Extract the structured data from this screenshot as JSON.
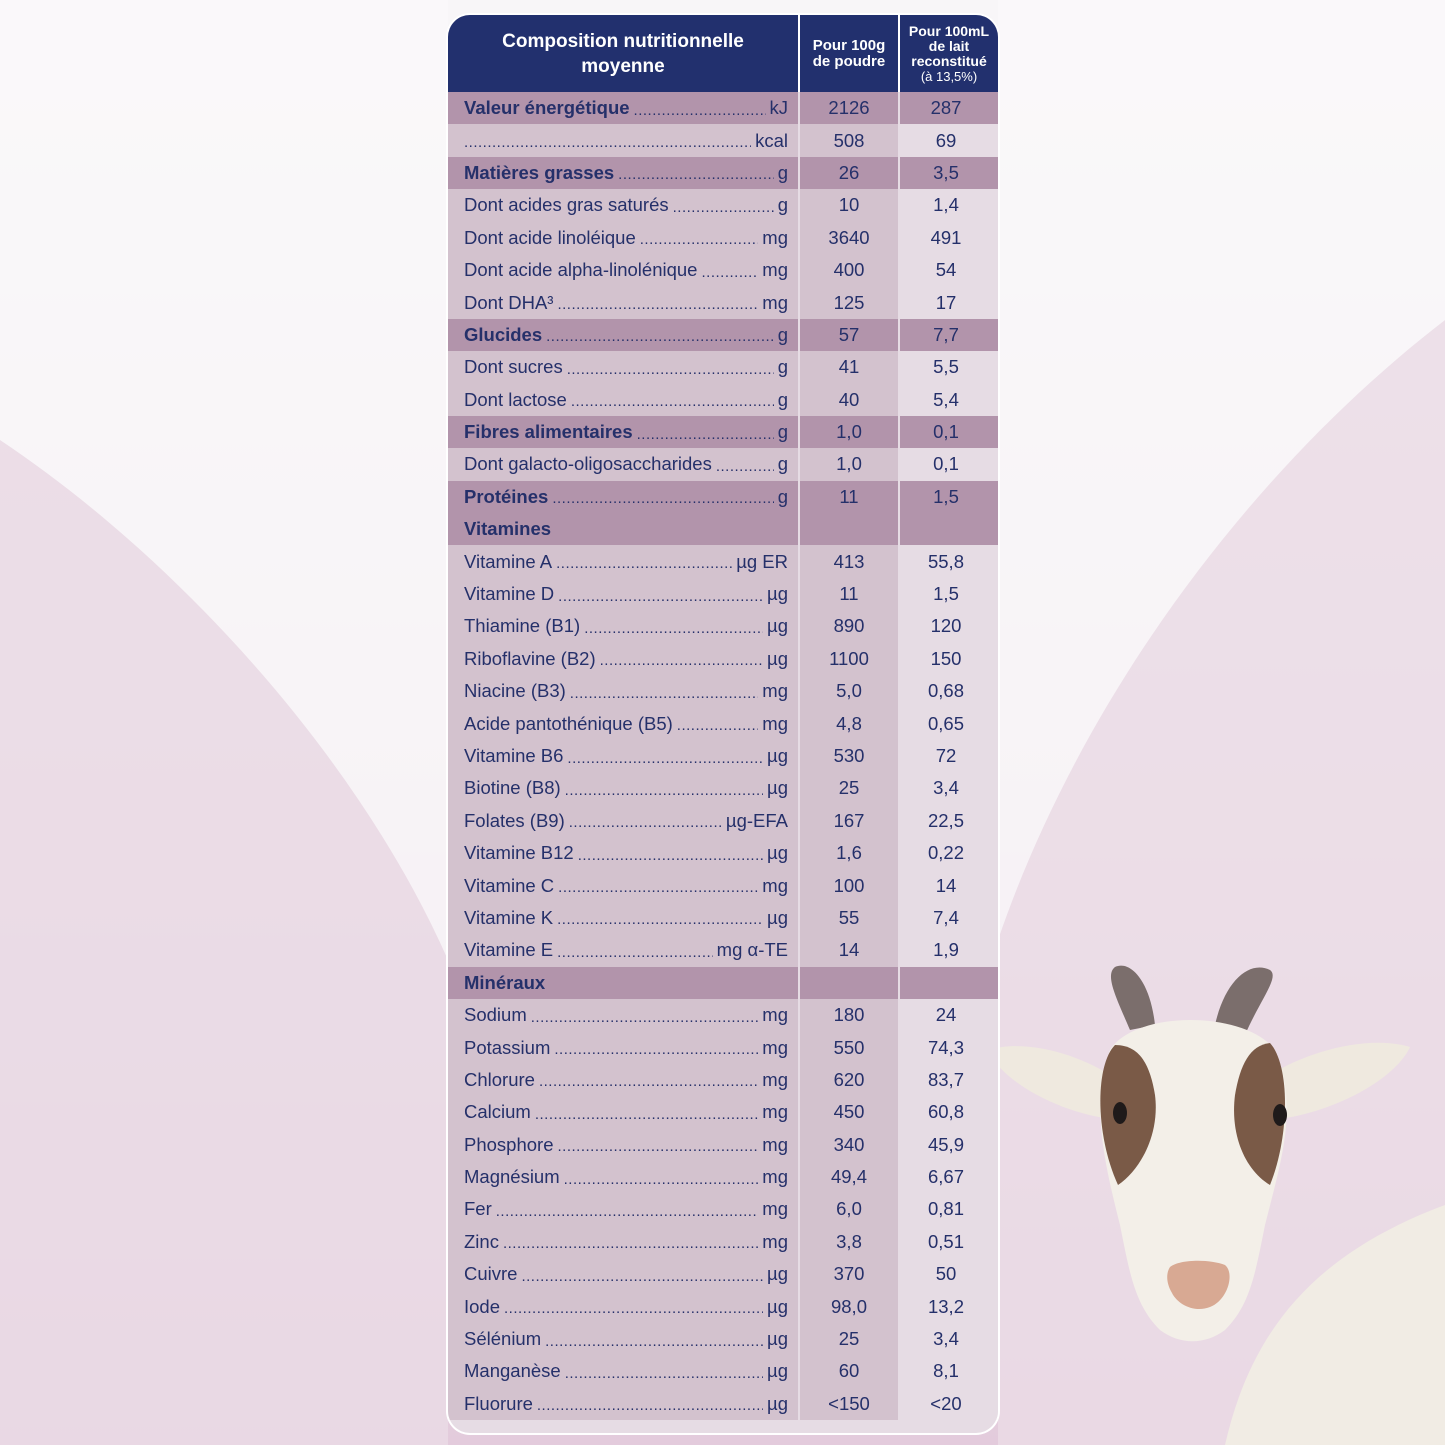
{
  "header": {
    "col_label": "Composition nutritionnelle moyenne",
    "col_label_line1": "Composition nutritionnelle",
    "col_label_line2": "moyenne",
    "col_100g_line1": "Pour 100g",
    "col_100g_line2": "de poudre",
    "col_100ml_line1": "Pour 100mL",
    "col_100ml_line2": "de lait",
    "col_100ml_line3": "reconstitué",
    "col_100ml_line4": "(à 13,5%)"
  },
  "rows": [
    {
      "label": "Valeur énergétique",
      "unit": "kJ",
      "v1": "2126",
      "v2": "287",
      "style": "hl"
    },
    {
      "label": "",
      "unit": "kcal",
      "v1": "508",
      "v2": "69",
      "style": "normal"
    },
    {
      "label": "Matières grasses",
      "unit": "g",
      "v1": "26",
      "v2": "3,5",
      "style": "hl"
    },
    {
      "label": "Dont acides gras saturés",
      "unit": "g",
      "v1": "10",
      "v2": "1,4",
      "style": "normal"
    },
    {
      "label": "Dont acide linoléique",
      "unit": "mg",
      "v1": "3640",
      "v2": "491",
      "style": "normal"
    },
    {
      "label": "Dont acide alpha-linolénique",
      "unit": "mg",
      "v1": "400",
      "v2": "54",
      "style": "normal"
    },
    {
      "label": "Dont DHA³",
      "unit": "mg",
      "v1": "125",
      "v2": "17",
      "style": "normal"
    },
    {
      "label": "Glucides",
      "unit": "g",
      "v1": "57",
      "v2": "7,7",
      "style": "hl"
    },
    {
      "label": "Dont sucres",
      "unit": "g",
      "v1": "41",
      "v2": "5,5",
      "style": "normal"
    },
    {
      "label": "Dont lactose",
      "unit": "g",
      "v1": "40",
      "v2": "5,4",
      "style": "normal"
    },
    {
      "label": "Fibres alimentaires",
      "unit": "g",
      "v1": "1,0",
      "v2": "0,1",
      "style": "hl"
    },
    {
      "label": "Dont galacto-oligosaccharides",
      "unit": "g",
      "v1": "1,0",
      "v2": "0,1",
      "style": "normal"
    },
    {
      "label": "Protéines",
      "unit": "g",
      "v1": "11",
      "v2": "1,5",
      "style": "hl"
    },
    {
      "label": "Vitamines",
      "unit": "",
      "v1": "",
      "v2": "",
      "style": "section"
    },
    {
      "label": "Vitamine A",
      "unit": "µg ER",
      "v1": "413",
      "v2": "55,8",
      "style": "normal"
    },
    {
      "label": "Vitamine D",
      "unit": "µg",
      "v1": "11",
      "v2": "1,5",
      "style": "normal"
    },
    {
      "label": "Thiamine (B1)",
      "unit": "µg",
      "v1": "890",
      "v2": "120",
      "style": "normal"
    },
    {
      "label": "Riboflavine (B2)",
      "unit": "µg",
      "v1": "1100",
      "v2": "150",
      "style": "normal"
    },
    {
      "label": "Niacine (B3)",
      "unit": "mg",
      "v1": "5,0",
      "v2": "0,68",
      "style": "normal"
    },
    {
      "label": "Acide pantothénique (B5)",
      "unit": "mg",
      "v1": "4,8",
      "v2": "0,65",
      "style": "normal"
    },
    {
      "label": "Vitamine B6",
      "unit": "µg",
      "v1": "530",
      "v2": "72",
      "style": "normal"
    },
    {
      "label": "Biotine (B8)",
      "unit": "µg",
      "v1": "25",
      "v2": "3,4",
      "style": "normal"
    },
    {
      "label": "Folates (B9)",
      "unit": "µg-EFA",
      "v1": "167",
      "v2": "22,5",
      "style": "normal"
    },
    {
      "label": "Vitamine B12",
      "unit": "µg",
      "v1": "1,6",
      "v2": "0,22",
      "style": "normal"
    },
    {
      "label": "Vitamine C",
      "unit": "mg",
      "v1": "100",
      "v2": "14",
      "style": "normal"
    },
    {
      "label": "Vitamine K",
      "unit": "µg",
      "v1": "55",
      "v2": "7,4",
      "style": "normal"
    },
    {
      "label": "Vitamine E",
      "unit": "mg α-TE",
      "v1": "14",
      "v2": "1,9",
      "style": "normal"
    },
    {
      "label": "Minéraux",
      "unit": "",
      "v1": "",
      "v2": "",
      "style": "section"
    },
    {
      "label": "Sodium",
      "unit": "mg",
      "v1": "180",
      "v2": "24",
      "style": "normal"
    },
    {
      "label": "Potassium",
      "unit": "mg",
      "v1": "550",
      "v2": "74,3",
      "style": "normal"
    },
    {
      "label": "Chlorure",
      "unit": "mg",
      "v1": "620",
      "v2": "83,7",
      "style": "normal"
    },
    {
      "label": "Calcium",
      "unit": "mg",
      "v1": "450",
      "v2": "60,8",
      "style": "normal"
    },
    {
      "label": "Phosphore",
      "unit": "mg",
      "v1": "340",
      "v2": "45,9",
      "style": "normal"
    },
    {
      "label": "Magnésium",
      "unit": "mg",
      "v1": "49,4",
      "v2": "6,67",
      "style": "normal"
    },
    {
      "label": "Fer",
      "unit": "mg",
      "v1": "6,0",
      "v2": "0,81",
      "style": "normal"
    },
    {
      "label": "Zinc",
      "unit": "mg",
      "v1": "3,8",
      "v2": "0,51",
      "style": "normal"
    },
    {
      "label": "Cuivre",
      "unit": "µg",
      "v1": "370",
      "v2": "50",
      "style": "normal"
    },
    {
      "label": "Iode",
      "unit": "µg",
      "v1": "98,0",
      "v2": "13,2",
      "style": "normal"
    },
    {
      "label": "Sélénium",
      "unit": "µg",
      "v1": "25",
      "v2": "3,4",
      "style": "normal"
    },
    {
      "label": "Manganèse",
      "unit": "µg",
      "v1": "60",
      "v2": "8,1",
      "style": "normal"
    },
    {
      "label": "Fluorure",
      "unit": "µg",
      "v1": "<150",
      "v2": "<20",
      "style": "normal"
    }
  ],
  "colors": {
    "header_bg": "#22306e",
    "text": "#25306a",
    "highlight_row": "#b294ab",
    "row_dark": "#d3c2ce",
    "row_light": "#e6dce4"
  },
  "illustration": {
    "icon": "goat-icon"
  }
}
